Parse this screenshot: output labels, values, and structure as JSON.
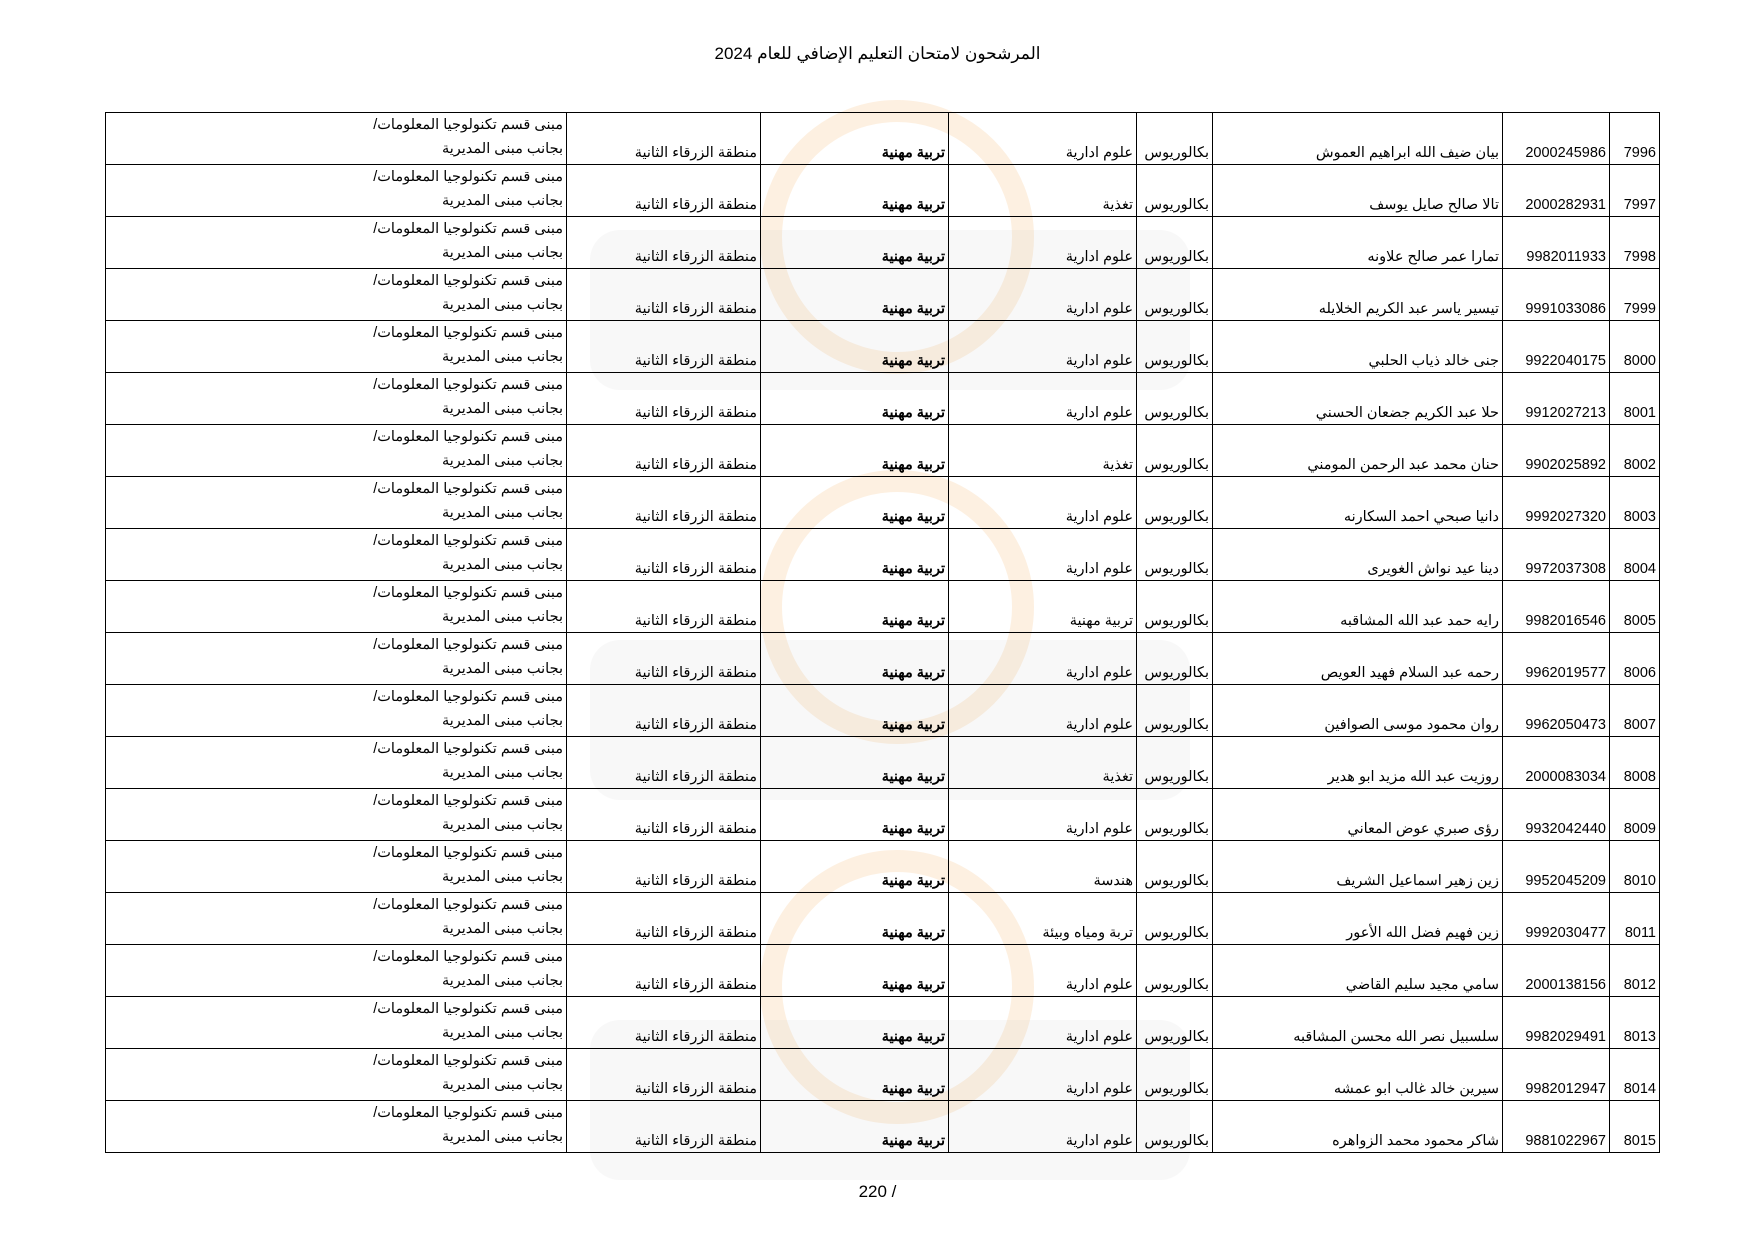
{
  "title": "المرشحون لامتحان التعليم الإضافي للعام 2024",
  "page_number": "220 /",
  "location_line1": "مبنى قسم تكنولوجيا المعلومات/",
  "location_line2": "بجانب مبنى المديرية",
  "rows": [
    [
      "7996",
      "2000245986",
      "بيان ضيف الله ابراهيم العموش",
      "بكالوريوس",
      "علوم ادارية",
      "تربية مهنية",
      "منطقة الزرقاء الثانية"
    ],
    [
      "7997",
      "2000282931",
      "تالا صالح صايل يوسف",
      "بكالوريوس",
      "تغذية",
      "تربية مهنية",
      "منطقة الزرقاء الثانية"
    ],
    [
      "7998",
      "9982011933",
      "تمارا عمر صالح علاونه",
      "بكالوريوس",
      "علوم ادارية",
      "تربية مهنية",
      "منطقة الزرقاء الثانية"
    ],
    [
      "7999",
      "9991033086",
      "تيسير ياسر عبد الكريم الخلايله",
      "بكالوريوس",
      "علوم ادارية",
      "تربية مهنية",
      "منطقة الزرقاء الثانية"
    ],
    [
      "8000",
      "9922040175",
      "جنى خالد ذياب الحلبي",
      "بكالوريوس",
      "علوم ادارية",
      "تربية مهنية",
      "منطقة الزرقاء الثانية"
    ],
    [
      "8001",
      "9912027213",
      "حلا عبد الكريم جضعان الحسني",
      "بكالوريوس",
      "علوم ادارية",
      "تربية مهنية",
      "منطقة الزرقاء الثانية"
    ],
    [
      "8002",
      "9902025892",
      "حنان محمد عبد الرحمن المومني",
      "بكالوريوس",
      "تغذية",
      "تربية مهنية",
      "منطقة الزرقاء الثانية"
    ],
    [
      "8003",
      "9992027320",
      "دانيا صبحي احمد السكارنه",
      "بكالوريوس",
      "علوم ادارية",
      "تربية مهنية",
      "منطقة الزرقاء الثانية"
    ],
    [
      "8004",
      "9972037308",
      "دينا عيد نواش الغويرى",
      "بكالوريوس",
      "علوم ادارية",
      "تربية مهنية",
      "منطقة الزرقاء الثانية"
    ],
    [
      "8005",
      "9982016546",
      "رايه حمد عبد الله المشاقبه",
      "بكالوريوس",
      "تربية مهنية",
      "تربية مهنية",
      "منطقة الزرقاء الثانية"
    ],
    [
      "8006",
      "9962019577",
      "رحمه عبد السلام فهيد العويص",
      "بكالوريوس",
      "علوم ادارية",
      "تربية مهنية",
      "منطقة الزرقاء الثانية"
    ],
    [
      "8007",
      "9962050473",
      "روان محمود موسى الصوافين",
      "بكالوريوس",
      "علوم ادارية",
      "تربية مهنية",
      "منطقة الزرقاء الثانية"
    ],
    [
      "8008",
      "2000083034",
      "روزيت عبد الله مزيد ابو هدير",
      "بكالوريوس",
      "تغذية",
      "تربية مهنية",
      "منطقة الزرقاء الثانية"
    ],
    [
      "8009",
      "9932042440",
      "رؤى صبري عوض المعاني",
      "بكالوريوس",
      "علوم ادارية",
      "تربية مهنية",
      "منطقة الزرقاء الثانية"
    ],
    [
      "8010",
      "9952045209",
      "زين زهير اسماعيل الشريف",
      "بكالوريوس",
      "هندسة",
      "تربية مهنية",
      "منطقة الزرقاء الثانية"
    ],
    [
      "8011",
      "9992030477",
      "زين فهيم فضل الله الأعور",
      "بكالوريوس",
      "تربة ومياه وبيئة",
      "تربية مهنية",
      "منطقة الزرقاء الثانية"
    ],
    [
      "8012",
      "2000138156",
      "سامي مجيد سليم القاضي",
      "بكالوريوس",
      "علوم ادارية",
      "تربية مهنية",
      "منطقة الزرقاء الثانية"
    ],
    [
      "8013",
      "9982029491",
      "سلسبيل نصر الله محسن المشاقبه",
      "بكالوريوس",
      "علوم ادارية",
      "تربية مهنية",
      "منطقة الزرقاء الثانية"
    ],
    [
      "8014",
      "9982012947",
      "سيرين خالد غالب ابو عمشه",
      "بكالوريوس",
      "علوم ادارية",
      "تربية مهنية",
      "منطقة الزرقاء الثانية"
    ],
    [
      "8015",
      "9881022967",
      "شاكر محمود محمد الزواهره",
      "بكالوريوس",
      "علوم ادارية",
      "تربية مهنية",
      "منطقة الزرقاء الثانية"
    ]
  ]
}
